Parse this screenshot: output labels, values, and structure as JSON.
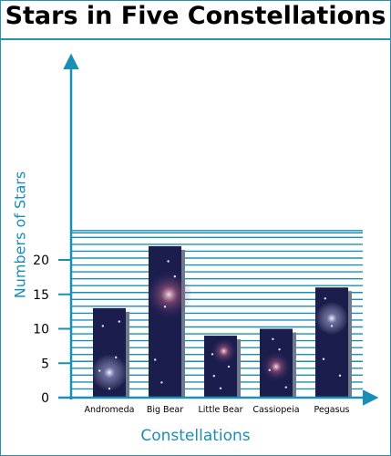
{
  "chart_data": {
    "type": "bar",
    "title": "Stars in Five Constellations",
    "xlabel": "Constellations",
    "ylabel": "Numbers of Stars",
    "categories": [
      "Andromeda",
      "Big Bear",
      "Little Bear",
      "Cassiopeia",
      "Pegasus"
    ],
    "values": [
      13,
      22,
      9,
      10,
      16
    ],
    "ylim": [
      0,
      25
    ],
    "yticks": [
      0,
      5,
      10,
      15,
      20
    ],
    "grid": true,
    "colors": {
      "bar": "#1b1e4d",
      "bar_shadow": "#6f7b8c",
      "axis": "#1a8fb5",
      "grid": "#1a8fb5"
    }
  }
}
